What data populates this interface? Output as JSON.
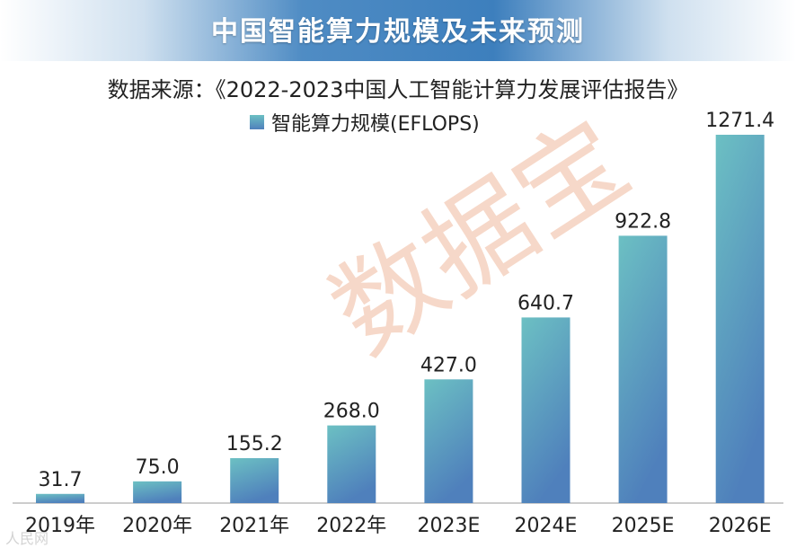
{
  "banner": {
    "title": "中国智能算力规模及未来预测"
  },
  "source_text": "数据来源：《2022-2023中国人工智能计算力发展评估报告》",
  "watermark": "数据宝",
  "footer_watermark": "人民网",
  "colors": {
    "banner": "#3d7fbd",
    "bar_top": "#6cc0c3",
    "bar_bottom": "#4f80bc"
  },
  "chart_data": {
    "type": "bar",
    "title": "中国智能算力规模及未来预测",
    "xlabel": "",
    "ylabel": "",
    "ylim": [
      0,
      1300
    ],
    "grid": false,
    "legend": "top",
    "categories": [
      "2019年",
      "2020年",
      "2021年",
      "2022年",
      "2023E",
      "2024E",
      "2025E",
      "2026E"
    ],
    "series": [
      {
        "name": "智能算力规模(EFLOPS)",
        "values": [
          31.7,
          75.0,
          155.2,
          268.0,
          427.0,
          640.7,
          922.8,
          1271.4
        ],
        "labels": [
          "31.7",
          "75.0",
          "155.2",
          "268.0",
          "427.0",
          "640.7",
          "922.8",
          "1271.4"
        ]
      }
    ]
  }
}
